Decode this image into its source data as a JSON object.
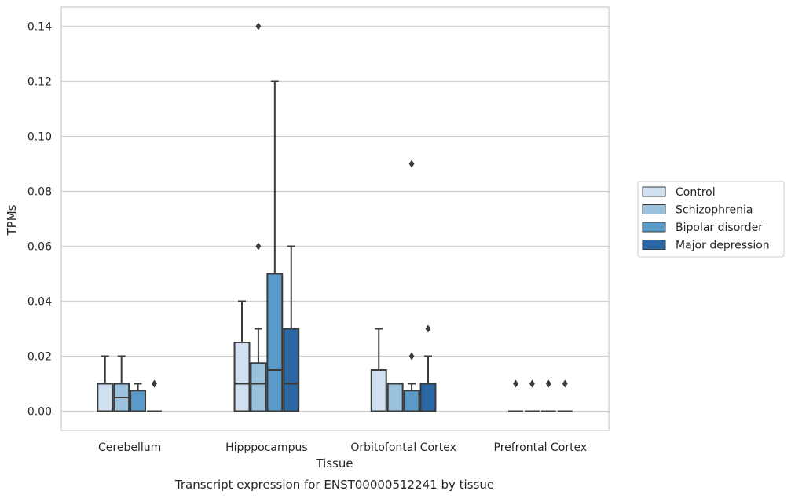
{
  "caption": "Transcript expression for ENST00000512241 by tissue",
  "chart_data": {
    "type": "boxplot",
    "title": "",
    "xlabel": "Tissue",
    "ylabel": "TPMs",
    "ylim": [
      -0.007,
      0.147
    ],
    "yticks": [
      "0.00",
      "0.02",
      "0.04",
      "0.06",
      "0.08",
      "0.10",
      "0.12",
      "0.14"
    ],
    "grid": "horizontal",
    "legend_position": "right",
    "categories": [
      "Cerebellum",
      "Hipppocampus",
      "Orbitofontal Cortex",
      "Prefrontal Cortex"
    ],
    "series": [
      {
        "name": "Control",
        "color": "#d0e0f0",
        "boxes": [
          {
            "whislo": 0,
            "q1": 0,
            "med": 0,
            "q3": 0.01,
            "whishi": 0.02,
            "fliers": []
          },
          {
            "whislo": 0,
            "q1": 0,
            "med": 0.01,
            "q3": 0.025,
            "whishi": 0.04,
            "fliers": []
          },
          {
            "whislo": 0,
            "q1": 0,
            "med": 0,
            "q3": 0.015,
            "whishi": 0.03,
            "fliers": []
          },
          {
            "whislo": 0,
            "q1": 0,
            "med": 0,
            "q3": 0,
            "whishi": 0,
            "fliers": [
              0.01
            ]
          }
        ]
      },
      {
        "name": "Schizophrenia",
        "color": "#9ac2de",
        "boxes": [
          {
            "whislo": 0,
            "q1": 0,
            "med": 0.005,
            "q3": 0.01,
            "whishi": 0.02,
            "fliers": []
          },
          {
            "whislo": 0,
            "q1": 0,
            "med": 0.01,
            "q3": 0.0175,
            "whishi": 0.03,
            "fliers": [
              0.06,
              0.14
            ]
          },
          {
            "whislo": 0,
            "q1": 0,
            "med": 0,
            "q3": 0.01,
            "whishi": 0.01,
            "fliers": []
          },
          {
            "whislo": 0,
            "q1": 0,
            "med": 0,
            "q3": 0,
            "whishi": 0,
            "fliers": [
              0.01
            ]
          }
        ]
      },
      {
        "name": "Bipolar disorder",
        "color": "#5a9ac8",
        "boxes": [
          {
            "whislo": 0,
            "q1": 0,
            "med": 0,
            "q3": 0.0075,
            "whishi": 0.01,
            "fliers": []
          },
          {
            "whislo": 0,
            "q1": 0,
            "med": 0.015,
            "q3": 0.05,
            "whishi": 0.12,
            "fliers": []
          },
          {
            "whislo": 0,
            "q1": 0,
            "med": 0,
            "q3": 0.0075,
            "whishi": 0.01,
            "fliers": [
              0.02,
              0.09
            ]
          },
          {
            "whislo": 0,
            "q1": 0,
            "med": 0,
            "q3": 0,
            "whishi": 0,
            "fliers": [
              0.01
            ]
          }
        ]
      },
      {
        "name": "Major depression",
        "color": "#2a67a5",
        "boxes": [
          {
            "whislo": 0,
            "q1": 0,
            "med": 0,
            "q3": 0,
            "whishi": 0,
            "fliers": [
              0.01
            ]
          },
          {
            "whislo": 0,
            "q1": 0,
            "med": 0.01,
            "q3": 0.03,
            "whishi": 0.06,
            "fliers": []
          },
          {
            "whislo": 0,
            "q1": 0,
            "med": 0,
            "q3": 0.01,
            "whishi": 0.02,
            "fliers": [
              0.03
            ]
          },
          {
            "whislo": 0,
            "q1": 0,
            "med": 0,
            "q3": 0,
            "whishi": 0,
            "fliers": [
              0.01
            ]
          }
        ]
      }
    ]
  }
}
